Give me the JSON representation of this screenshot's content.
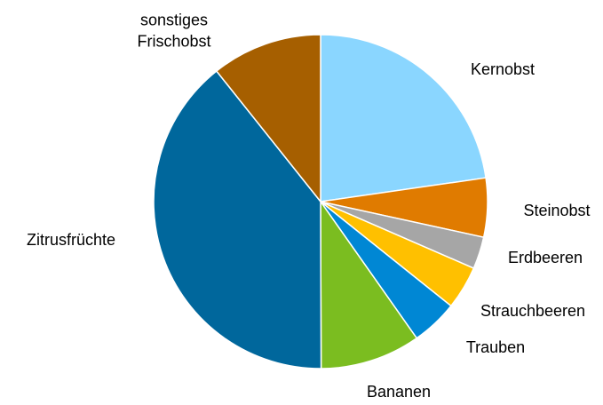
{
  "chart_data": {
    "type": "pie",
    "categories": [
      "Kernobst",
      "Steinobst",
      "Erdbeeren",
      "Strauchbeeren",
      "Trauben",
      "Bananen",
      "Zitrusfrüchte",
      "sonstiges Frischobst"
    ],
    "values": [
      22.7,
      5.7,
      3.1,
      4.2,
      4.5,
      9.7,
      39.3,
      10.7
    ],
    "colors": [
      "#8ad6ff",
      "#e07b00",
      "#a6a6a6",
      "#ffc000",
      "#0087d4",
      "#7bbd20",
      "#00679c",
      "#a65f00"
    ]
  }
}
